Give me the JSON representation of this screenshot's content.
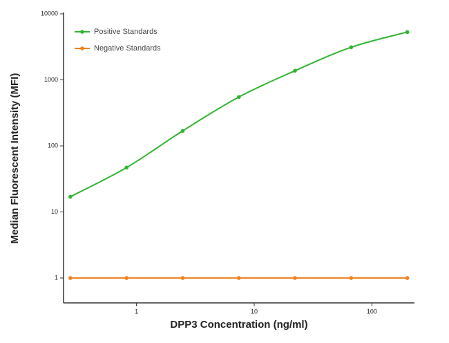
{
  "chart_data": {
    "type": "line",
    "xlabel": "DPP3 Concentration (ng/ml)",
    "ylabel": "Median  Fluorescent Intensity  (MFI)",
    "x": [
      0.274,
      0.823,
      2.47,
      7.41,
      22.2,
      66.7,
      200
    ],
    "series": [
      {
        "name": "Positive Standards",
        "color": "#2fb52f",
        "values": [
          17,
          47,
          169,
          550,
          1375,
          3120,
          5300
        ]
      },
      {
        "name": "Negative Standards",
        "color": "#f0821e",
        "values": [
          1,
          1,
          1,
          1,
          1,
          1,
          1
        ]
      }
    ],
    "xscale": "log",
    "yscale": "log",
    "xlim": [
      0.24,
      230
    ],
    "ylim": [
      0.42,
      10000
    ],
    "xticks": [
      1,
      10,
      100
    ],
    "yticks": [
      1,
      10,
      100,
      1000,
      10000
    ],
    "legend": "upper left"
  }
}
